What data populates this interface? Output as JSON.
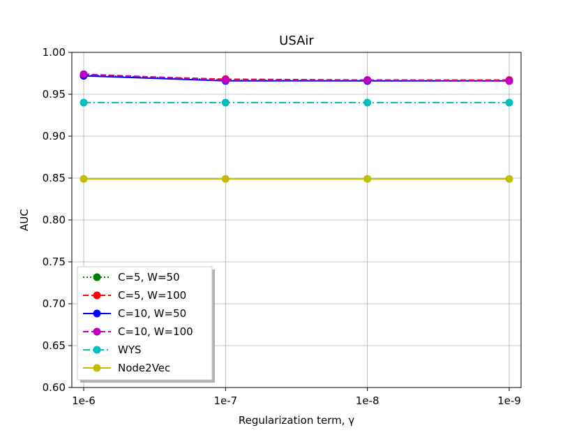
{
  "chart_data": {
    "type": "line",
    "title": "USAir",
    "xlabel": "Regularization term, γ",
    "ylabel": "AUC",
    "categories": [
      "1e-6",
      "1e-7",
      "1e-8",
      "1e-9"
    ],
    "ylim": [
      0.6,
      1.0
    ],
    "yticks": [
      "0.60",
      "0.65",
      "0.70",
      "0.75",
      "0.80",
      "0.85",
      "0.90",
      "0.95",
      "1.00"
    ],
    "grid": true,
    "legend_position": "lower-left",
    "series": [
      {
        "name": "C=5, W=50",
        "values": [
          0.973,
          0.967,
          0.966,
          0.966
        ],
        "color": "#008000",
        "dash": "dotted"
      },
      {
        "name": "C=5, W=100",
        "values": [
          0.973,
          0.968,
          0.967,
          0.967
        ],
        "color": "#ff0000",
        "dash": "dashed"
      },
      {
        "name": "C=10, W=50",
        "values": [
          0.972,
          0.966,
          0.966,
          0.966
        ],
        "color": "#0000ff",
        "dash": "solid"
      },
      {
        "name": "C=10, W=100",
        "values": [
          0.974,
          0.967,
          0.967,
          0.966
        ],
        "color": "#bf00bf",
        "dash": "dashed"
      },
      {
        "name": "WYS",
        "values": [
          0.94,
          0.94,
          0.94,
          0.94
        ],
        "color": "#00bfbf",
        "dash": "dashdot"
      },
      {
        "name": "Node2Vec",
        "values": [
          0.849,
          0.849,
          0.849,
          0.849
        ],
        "color": "#bfbf00",
        "dash": "solid"
      }
    ]
  }
}
